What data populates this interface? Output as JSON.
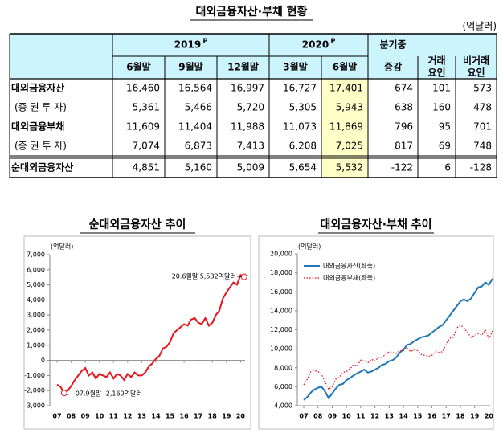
{
  "table": {
    "title": "대외금융자산·부채 현황",
    "unit": "(억달러)",
    "years": [
      {
        "text": "2019",
        "sup": "P"
      },
      {
        "text": "2020",
        "sup": "P"
      }
    ],
    "months": [
      "6월말",
      "9월말",
      "12월말",
      "3월말",
      "6월말"
    ],
    "change": [
      "분기중",
      "증감"
    ],
    "trade": [
      "거래",
      "요인"
    ],
    "nontrade": [
      "비거래",
      "요인"
    ],
    "rows": [
      [
        "대외금융자산",
        "16,460",
        "16,564",
        "16,997",
        "16,727",
        "17,401",
        "674",
        "101",
        "573"
      ],
      [
        "(증 권 투 자)",
        "5,361",
        "5,466",
        "5,720",
        "5,305",
        "5,943",
        "638",
        "160",
        "478"
      ],
      [
        "대외금융부채",
        "11,609",
        "11,404",
        "11,988",
        "11,073",
        "11,869",
        "796",
        "95",
        "701"
      ],
      [
        "(증 권 투 자)",
        "7,074",
        "6,873",
        "7,413",
        "6,208",
        "7,025",
        "817",
        "69",
        "748"
      ],
      [
        "순대외금융자산",
        "4,851",
        "5,160",
        "5,009",
        "5,654",
        "5,532",
        "-122",
        "6",
        "-128"
      ]
    ]
  },
  "chart_data": [
    {
      "type": "line",
      "title": "순대외금융자산 추이",
      "unit_label": "(억달러)",
      "categories": [
        "07",
        null,
        null,
        null,
        "08",
        null,
        null,
        null,
        "09",
        null,
        null,
        null,
        "10",
        null,
        null,
        null,
        "11",
        null,
        null,
        null,
        "12",
        null,
        null,
        null,
        "13",
        null,
        null,
        null,
        "14",
        null,
        null,
        null,
        "15",
        null,
        null,
        null,
        "16",
        null,
        null,
        null,
        "17",
        null,
        null,
        null,
        "18",
        null,
        null,
        null,
        "19",
        null,
        null,
        null,
        "20",
        null
      ],
      "values": [
        -1600,
        -1750,
        -2160,
        -2000,
        -1700,
        -1300,
        -1000,
        -700,
        -500,
        -1000,
        -800,
        -1200,
        -900,
        -1000,
        -1100,
        -800,
        -1200,
        -900,
        -1000,
        -1300,
        -900,
        -1100,
        -800,
        -1000,
        -1000,
        -800,
        -400,
        -200,
        100,
        300,
        800,
        900,
        1200,
        1800,
        2000,
        2200,
        2400,
        2300,
        2700,
        2800,
        2500,
        2400,
        2800,
        2300,
        2500,
        3000,
        3300,
        4100,
        4500,
        4851,
        5160,
        5009,
        5654,
        5532
      ],
      "color": "#e8141c",
      "ylim": [
        -3000,
        7000
      ],
      "yticks": [
        {
          "value": -3000,
          "label": "-3,000"
        },
        {
          "value": -2000,
          "label": "-2,000"
        },
        {
          "value": -1000,
          "label": "-1,000"
        },
        0,
        {
          "value": 1000,
          "label": "1,000"
        },
        {
          "value": 2000,
          "label": "2,000"
        },
        {
          "value": 3000,
          "label": "3,000"
        },
        {
          "value": 4000,
          "label": "4,000"
        },
        {
          "value": 5000,
          "label": "5,000"
        },
        {
          "value": 6000,
          "label": "6,000"
        },
        {
          "value": 7000,
          "label": "7,000"
        }
      ],
      "annotations": [
        "20.6월말 5,532억달러",
        "07.9월말 -2,160억달러"
      ]
    },
    {
      "type": "line",
      "title": "대외금융자산·부채 추이",
      "unit_label": "(억달러)",
      "categories": [
        "07",
        null,
        null,
        null,
        "08",
        null,
        null,
        null,
        "09",
        null,
        null,
        null,
        "10",
        null,
        null,
        null,
        "11",
        null,
        null,
        null,
        "12",
        null,
        null,
        null,
        "13",
        null,
        null,
        null,
        "14",
        null,
        null,
        null,
        "15",
        null,
        null,
        null,
        "16",
        null,
        null,
        null,
        "17",
        null,
        null,
        null,
        "18",
        null,
        null,
        null,
        "19",
        null,
        null,
        null,
        "20",
        null
      ],
      "series": [
        {
          "name": "대외금융자산(좌축)",
          "color": "#1f77b4",
          "line_style": "solid",
          "values": [
            4600,
            4900,
            5400,
            5700,
            5900,
            6000,
            5500,
            4800,
            5300,
            5800,
            6200,
            6300,
            6700,
            6900,
            7200,
            7400,
            7600,
            7800,
            7500,
            7600,
            7800,
            8000,
            8300,
            8400,
            8700,
            8800,
            9100,
            9600,
            9900,
            10400,
            10500,
            10800,
            11000,
            11200,
            11300,
            11400,
            11700,
            12000,
            12300,
            12500,
            13000,
            13500,
            14000,
            14500,
            15000,
            15200,
            15000,
            15300,
            15900,
            16460,
            16564,
            16997,
            16727,
            17401
          ]
        },
        {
          "name": "대외금융부채(좌축)",
          "color": "#e8141c",
          "line_style": "dotted",
          "values": [
            6200,
            6800,
            7600,
            7700,
            7600,
            7300,
            6500,
            5700,
            6000,
            6800,
            7000,
            7500,
            7600,
            7900,
            8300,
            8200,
            8800,
            8700,
            8500,
            8900,
            8700,
            9100,
            9100,
            9400,
            9700,
            9600,
            9500,
            9800,
            9800,
            10100,
            9700,
            9900,
            9800,
            9400,
            9300,
            9200,
            9300,
            9700,
            9600,
            9700,
            10500,
            11100,
            11200,
            12200,
            12500,
            12200,
            11700,
            11200,
            11400,
            11609,
            11404,
            11988,
            11073,
            11869
          ]
        }
      ],
      "ylim": [
        4000,
        20000
      ],
      "yticks": [
        {
          "value": 4000,
          "label": "4,000"
        },
        {
          "value": 6000,
          "label": "6,000"
        },
        {
          "value": 8000,
          "label": "8,000"
        },
        {
          "value": 10000,
          "label": "10,000"
        },
        {
          "value": 12000,
          "label": "12,000"
        },
        {
          "value": 14000,
          "label": "14,000"
        },
        {
          "value": 16000,
          "label": "16,000"
        },
        {
          "value": 18000,
          "label": "18,000"
        },
        {
          "value": 20000,
          "label": "20,000"
        }
      ]
    }
  ]
}
